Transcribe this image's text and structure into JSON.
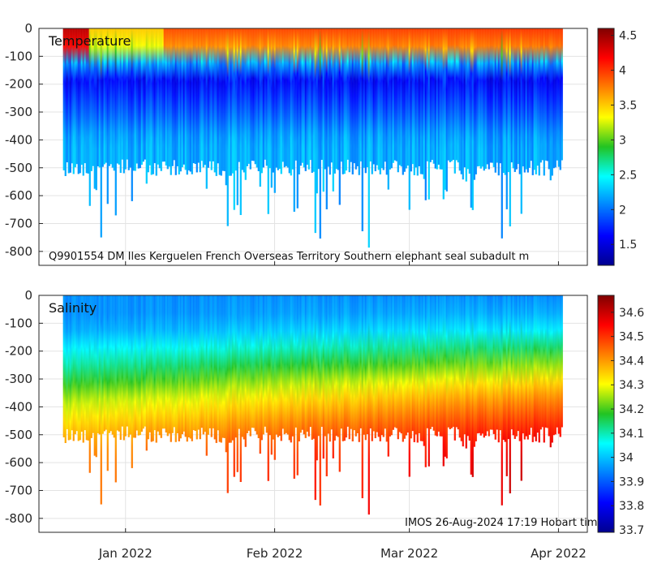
{
  "chart_data": [
    {
      "type": "heatmap",
      "title": "Temperature",
      "variable": "temperature",
      "annotation": "Q9901554 DM Iles Kerguelen French Overseas Territory Southern elephant seal subadult m",
      "ylim": [
        -850,
        0
      ],
      "yticks": [
        0,
        -100,
        -200,
        -300,
        -400,
        -500,
        -600,
        -700,
        -800
      ],
      "colorbar": {
        "min": 1.2,
        "max": 4.6,
        "ticks": [
          1.5,
          2,
          2.5,
          3,
          3.5,
          4,
          4.5
        ]
      },
      "profile": {
        "depth": [
          0,
          50,
          80,
          100,
          130,
          180,
          250,
          330,
          400,
          500
        ],
        "value": [
          3.9,
          3.9,
          3.4,
          3.0,
          2.0,
          1.6,
          1.8,
          2.0,
          2.2,
          2.2
        ]
      }
    },
    {
      "type": "heatmap",
      "title": "Salinity",
      "variable": "salinity",
      "annotation": "IMOS 26-Aug-2024 17:19 Hobart tim",
      "ylim": [
        -850,
        0
      ],
      "yticks": [
        0,
        -100,
        -200,
        -300,
        -400,
        -500,
        -600,
        -700,
        -800
      ],
      "colorbar": {
        "min": 33.69,
        "max": 34.67,
        "ticks": [
          33.7,
          33.8,
          33.9,
          34,
          34.1,
          34.2,
          34.3,
          34.4,
          34.5,
          34.6
        ]
      },
      "profile": {
        "depth": [
          0,
          100,
          200,
          280,
          350,
          450,
          550,
          650,
          800
        ],
        "value": [
          33.95,
          33.97,
          34.1,
          34.2,
          34.3,
          34.4,
          34.48,
          34.5,
          34.5
        ]
      }
    }
  ],
  "x_axis": {
    "range": [
      "2021-12-14",
      "2022-04-07"
    ],
    "ticks": [
      {
        "label": "Jan 2022",
        "date": "2022-01-01"
      },
      {
        "label": "Feb 2022",
        "date": "2022-02-01"
      },
      {
        "label": "Mar 2022",
        "date": "2022-03-01"
      },
      {
        "label": "Apr 2022",
        "date": "2022-04-01"
      }
    ],
    "data_start": "2021-12-19",
    "data_end": "2022-04-02"
  }
}
